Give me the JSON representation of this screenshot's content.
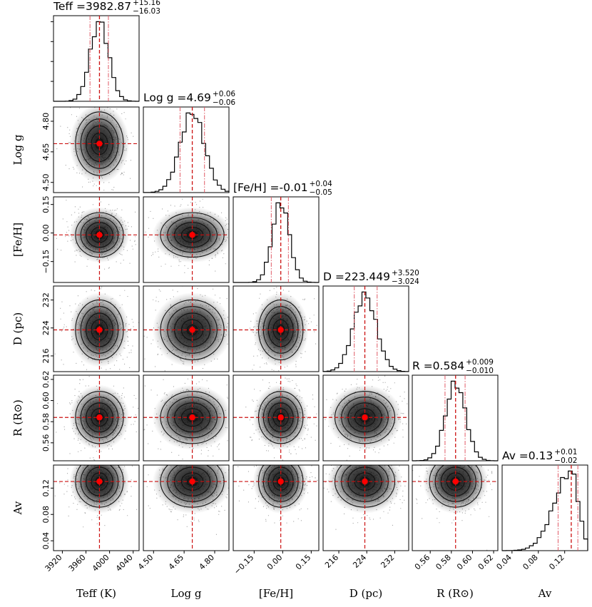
{
  "chart_data": {
    "type": "corner",
    "params": [
      {
        "key": "teff",
        "axis_label": "Teff (K)",
        "row_label": "",
        "title_name": "Teff",
        "median": "3982.87",
        "plus": "+15.16",
        "minus": "−16.03",
        "range": [
          3905,
          4050
        ],
        "ticks": [
          3920,
          3960,
          4000,
          4040
        ],
        "tick_labels": [
          "3920",
          "3960",
          "4000",
          "4040"
        ],
        "lo": 3966.84,
        "hi": 3998.03,
        "truth": 3982.87,
        "sigma": 15.6
      },
      {
        "key": "logg",
        "axis_label": "Log g",
        "row_label": "Log g",
        "title_name": "Log g",
        "median": "4.69",
        "plus": "+0.06",
        "minus": "−0.06",
        "range": [
          4.45,
          4.87
        ],
        "ticks": [
          4.5,
          4.65,
          4.8
        ],
        "tick_labels": [
          "4.50",
          "4.65",
          "4.80"
        ],
        "lo": 4.63,
        "hi": 4.75,
        "truth": 4.69,
        "sigma": 0.06
      },
      {
        "key": "feh",
        "axis_label": "[Fe/H]",
        "row_label": "[Fe/H]",
        "title_name": "[Fe/H]",
        "median": "-0.01",
        "plus": "+0.04",
        "minus": "−0.05",
        "range": [
          -0.26,
          0.19
        ],
        "ticks": [
          -0.15,
          0.0,
          0.15
        ],
        "tick_labels": [
          "−0.15",
          "0.00",
          "0.15"
        ],
        "lo": -0.06,
        "hi": 0.03,
        "truth": -0.01,
        "sigma": 0.045
      },
      {
        "key": "d",
        "axis_label": "D (pc)",
        "row_label": "D (pc)",
        "title_name": "D",
        "median": "223.449",
        "plus": "+3.520",
        "minus": "−3.024",
        "range": [
          211.5,
          236
        ],
        "ticks": [
          216,
          224,
          232
        ],
        "tick_labels": [
          "216",
          "224",
          "232"
        ],
        "lo": 220.425,
        "hi": 226.969,
        "truth": 223.449,
        "sigma": 3.3
      },
      {
        "key": "r",
        "axis_label": "R (R⊙)",
        "row_label": "R (R⊙)",
        "title_name": "R",
        "median": "0.584",
        "plus": "+0.009",
        "minus": "−0.010",
        "range": [
          0.543,
          0.624
        ],
        "ticks": [
          0.56,
          0.58,
          0.6,
          0.62
        ],
        "tick_labels": [
          "0.56",
          "0.58",
          "0.60",
          "0.62"
        ],
        "lo": 0.574,
        "hi": 0.593,
        "truth": 0.584,
        "sigma": 0.0095
      },
      {
        "key": "av",
        "axis_label": "Av",
        "row_label": "Av",
        "title_name": "Av",
        "median": "0.13",
        "plus": "+0.01",
        "minus": "−0.02",
        "range": [
          0.025,
          0.155
        ],
        "ticks": [
          0.04,
          0.08,
          0.12
        ],
        "tick_labels": [
          "0.04",
          "0.08",
          "0.12"
        ],
        "lo": 0.11,
        "hi": 0.14,
        "truth": 0.13,
        "sigma": 0.015,
        "skew": true
      }
    ],
    "colors": {
      "truth": "#cc1111",
      "quantile": "#e05a66",
      "hist": "#000000",
      "scatter": "#000000",
      "marker": "#ff0000"
    }
  }
}
